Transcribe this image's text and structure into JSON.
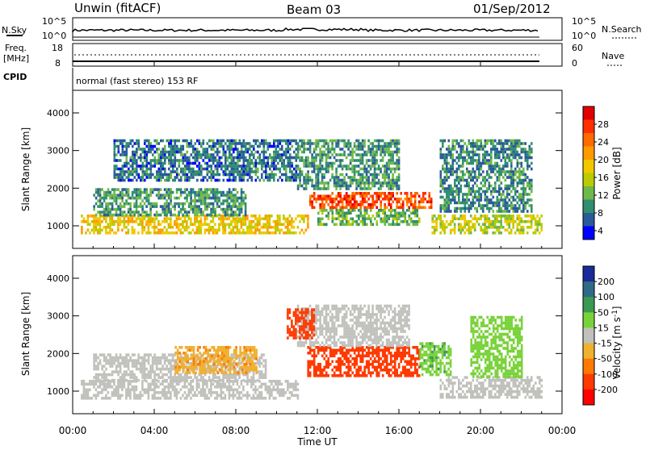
{
  "header": {
    "station": "Unwin (fitACF)",
    "beam": "Beam 03",
    "date": "01/Sep/2012"
  },
  "noise_panel": {
    "left_label": "N.Sky",
    "left_ticks": [
      "10^5",
      "10^0"
    ],
    "right_ticks": [
      "10^5",
      "10^0"
    ],
    "right_label": "N.Search"
  },
  "freq_panel": {
    "left_label_1": "Freq.",
    "left_label_2": "[MHz]",
    "left_ticks": [
      "18",
      "8"
    ],
    "right_ticks": [
      "60",
      "0"
    ],
    "right_label": "Nave"
  },
  "cpid": {
    "label": "CPID",
    "program": "normal (fast stereo) 153 RF"
  },
  "time_axis": {
    "label": "Time UT",
    "ticks": [
      "00:00",
      "04:00",
      "08:00",
      "12:00",
      "16:00",
      "20:00",
      "00:00"
    ]
  },
  "chart_data": [
    {
      "type": "heatmap",
      "title": "",
      "xlabel": "Time UT",
      "ylabel": "Slant Range [km]",
      "y_ticks": [
        "1000",
        "2000",
        "3000",
        "4000"
      ],
      "xlim": [
        0,
        24
      ],
      "ylim": [
        400,
        4600
      ],
      "colorbar": {
        "label": "Power [dB]",
        "tick_labels": [
          "28",
          "24",
          "20",
          "16",
          "12",
          "8",
          "4"
        ],
        "colors": [
          "#e00000",
          "#ff3000",
          "#ff6a00",
          "#ff9a00",
          "#f0c800",
          "#b8cc00",
          "#6fb84a",
          "#2f8e6f",
          "#2a5a9a",
          "#0000ff"
        ],
        "range": [
          0,
          30
        ]
      },
      "regions": [
        {
          "t": [
            0.4,
            11.5
          ],
          "r": [
            800,
            1300
          ],
          "value": 16
        },
        {
          "t": [
            1.0,
            8.5
          ],
          "r": [
            1300,
            2000
          ],
          "value": 8
        },
        {
          "t": [
            2.0,
            11.0
          ],
          "r": [
            2200,
            3300
          ],
          "value": 6
        },
        {
          "t": [
            11.6,
            17.6
          ],
          "r": [
            1500,
            1900
          ],
          "value": 24
        },
        {
          "t": [
            12.0,
            17.0
          ],
          "r": [
            1000,
            1450
          ],
          "value": 10
        },
        {
          "t": [
            11.0,
            16.0
          ],
          "r": [
            2000,
            3300
          ],
          "value": 8
        },
        {
          "t": [
            17.6,
            23.0
          ],
          "r": [
            800,
            1300
          ],
          "value": 14
        },
        {
          "t": [
            18.0,
            22.5
          ],
          "r": [
            1400,
            3300
          ],
          "value": 7
        }
      ]
    },
    {
      "type": "heatmap",
      "title": "",
      "xlabel": "Time UT",
      "ylabel": "Slant Range [km]",
      "y_ticks": [
        "1000",
        "2000",
        "3000",
        "4000"
      ],
      "xlim": [
        0,
        24
      ],
      "ylim": [
        400,
        4600
      ],
      "colorbar": {
        "label": "Velocity [m s^-1]",
        "tick_labels": [
          "200",
          "100",
          "50",
          "15",
          "-15",
          "-50",
          "-100",
          "-200"
        ],
        "colors": [
          "#1a2a9a",
          "#2f6b86",
          "#3a9a52",
          "#7ad23a",
          "#c0c0bc",
          "#f0b030",
          "#ff7a00",
          "#ff3a00",
          "#ff0000"
        ]
      },
      "regions": [
        {
          "t": [
            0.4,
            11.0
          ],
          "r": [
            800,
            1300
          ],
          "value": 0
        },
        {
          "t": [
            1.0,
            9.5
          ],
          "r": [
            1300,
            2000
          ],
          "value": 0
        },
        {
          "t": [
            5.0,
            9.0
          ],
          "r": [
            1500,
            2200
          ],
          "value": -40
        },
        {
          "t": [
            11.5,
            17.0
          ],
          "r": [
            1400,
            2200
          ],
          "value": -180
        },
        {
          "t": [
            11.0,
            16.5
          ],
          "r": [
            2200,
            3300
          ],
          "value": 0
        },
        {
          "t": [
            10.5,
            11.8
          ],
          "r": [
            2400,
            3200
          ],
          "value": -160
        },
        {
          "t": [
            17.0,
            18.5
          ],
          "r": [
            1400,
            2300
          ],
          "value": 40
        },
        {
          "t": [
            18.0,
            23.0
          ],
          "r": [
            800,
            1400
          ],
          "value": 0
        },
        {
          "t": [
            19.5,
            22.0
          ],
          "r": [
            1400,
            3000
          ],
          "value": 30
        }
      ]
    }
  ],
  "colors": {
    "axes": "#000000",
    "background": "#ffffff"
  }
}
